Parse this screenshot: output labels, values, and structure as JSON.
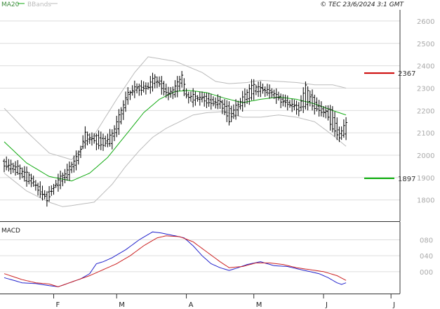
{
  "header": {
    "legend_ma": "MA20",
    "legend_bbands": "BBands",
    "copyright": "© TEC 23/6/2024 3:1 GMT"
  },
  "colors": {
    "price_bars": "#000000",
    "ma20": "#11aa11",
    "bbands": "#bbbbbb",
    "macd_line": "#2222cc",
    "signal_line": "#cc2222",
    "resistance_line": "#cc0000",
    "support_line": "#00aa00",
    "grid": "#dddddd",
    "axis_label": "#aaaaaa"
  },
  "chart_data": [
    {
      "type": "ohlc",
      "y_ticks": [
        "2600",
        "2500",
        "2400",
        "2300",
        "2200",
        "2100",
        "2000",
        "1900",
        "1800"
      ],
      "y_tick_values": [
        2600,
        2500,
        2400,
        2300,
        2200,
        2100,
        2000,
        1900,
        1800
      ],
      "ylim": [
        1705,
        2650
      ],
      "x_labels": [
        "F",
        "M",
        "A",
        "M",
        "J",
        "J"
      ],
      "x_label_days": [
        22,
        50,
        81,
        111,
        142,
        172
      ],
      "xlim": [
        0,
        176
      ],
      "levels": [
        {
          "name": "resistance",
          "value": 2367,
          "label": "2367"
        },
        {
          "name": "support",
          "value": 1897,
          "label": "1897"
        }
      ],
      "anchor_ohlc": [
        [
          0,
          1970,
          1955
        ],
        [
          6,
          1925,
          1950
        ],
        [
          12,
          1880,
          1900
        ],
        [
          16,
          1855,
          1830
        ],
        [
          19,
          1820,
          1800
        ],
        [
          23,
          1860,
          1875
        ],
        [
          28,
          1900,
          1935
        ],
        [
          33,
          1980,
          2000
        ],
        [
          36,
          2060,
          2100
        ],
        [
          40,
          2080,
          2060
        ],
        [
          44,
          2080,
          2040
        ],
        [
          48,
          2050,
          2100
        ],
        [
          52,
          2150,
          2200
        ],
        [
          55,
          2250,
          2280
        ],
        [
          58,
          2290,
          2300
        ],
        [
          61,
          2310,
          2290
        ],
        [
          64,
          2300,
          2310
        ],
        [
          67,
          2320,
          2350
        ],
        [
          70,
          2330,
          2300
        ],
        [
          73,
          2280,
          2270
        ],
        [
          76,
          2270,
          2310
        ],
        [
          79,
          2320,
          2360
        ],
        [
          81,
          2280,
          2260
        ],
        [
          84,
          2240,
          2270
        ],
        [
          88,
          2260,
          2250
        ],
        [
          92,
          2250,
          2230
        ],
        [
          96,
          2230,
          2240
        ],
        [
          100,
          2220,
          2150
        ],
        [
          103,
          2180,
          2220
        ],
        [
          107,
          2240,
          2270
        ],
        [
          111,
          2270,
          2320
        ],
        [
          115,
          2300,
          2290
        ],
        [
          119,
          2270,
          2290
        ],
        [
          123,
          2260,
          2240
        ],
        [
          127,
          2230,
          2230
        ],
        [
          131,
          2220,
          2200
        ],
        [
          134,
          2210,
          2320
        ],
        [
          137,
          2270,
          2220
        ],
        [
          140,
          2220,
          2200
        ],
        [
          143,
          2200,
          2190
        ],
        [
          146,
          2200,
          2120
        ],
        [
          149,
          2110,
          2080
        ],
        [
          152,
          2090,
          2150
        ]
      ],
      "ma20_anchors": [
        [
          0,
          2060
        ],
        [
          10,
          1965
        ],
        [
          20,
          1905
        ],
        [
          30,
          1885
        ],
        [
          38,
          1920
        ],
        [
          46,
          1990
        ],
        [
          54,
          2090
        ],
        [
          62,
          2190
        ],
        [
          69,
          2250
        ],
        [
          76,
          2285
        ],
        [
          82,
          2290
        ],
        [
          90,
          2280
        ],
        [
          98,
          2255
        ],
        [
          106,
          2235
        ],
        [
          114,
          2250
        ],
        [
          122,
          2260
        ],
        [
          130,
          2250
        ],
        [
          138,
          2230
        ],
        [
          146,
          2200
        ],
        [
          152,
          2180
        ]
      ],
      "bband_upper_anchors": [
        [
          0,
          2210
        ],
        [
          10,
          2105
        ],
        [
          20,
          2010
        ],
        [
          30,
          1980
        ],
        [
          40,
          2090
        ],
        [
          50,
          2250
        ],
        [
          58,
          2370
        ],
        [
          64,
          2440
        ],
        [
          70,
          2430
        ],
        [
          76,
          2420
        ],
        [
          82,
          2395
        ],
        [
          88,
          2370
        ],
        [
          94,
          2330
        ],
        [
          100,
          2320
        ],
        [
          108,
          2325
        ],
        [
          114,
          2335
        ],
        [
          122,
          2330
        ],
        [
          130,
          2325
        ],
        [
          138,
          2315
        ],
        [
          146,
          2315
        ],
        [
          152,
          2300
        ]
      ],
      "bband_lower_anchors": [
        [
          0,
          1920
        ],
        [
          10,
          1840
        ],
        [
          20,
          1790
        ],
        [
          26,
          1770
        ],
        [
          30,
          1775
        ],
        [
          40,
          1790
        ],
        [
          48,
          1870
        ],
        [
          54,
          1950
        ],
        [
          60,
          2020
        ],
        [
          66,
          2080
        ],
        [
          72,
          2120
        ],
        [
          78,
          2150
        ],
        [
          84,
          2180
        ],
        [
          90,
          2190
        ],
        [
          98,
          2195
        ],
        [
          106,
          2170
        ],
        [
          114,
          2170
        ],
        [
          122,
          2180
        ],
        [
          130,
          2170
        ],
        [
          138,
          2150
        ],
        [
          146,
          2090
        ],
        [
          152,
          2040
        ]
      ]
    },
    {
      "type": "line",
      "title": "MACD",
      "y_ticks": [
        "080",
        "040",
        "000"
      ],
      "y_tick_values": [
        80,
        40,
        0
      ],
      "ylim": [
        -55,
        125
      ],
      "series": [
        {
          "key": "macd",
          "anchors": [
            [
              0,
              -15
            ],
            [
              8,
              -28
            ],
            [
              14,
              -30
            ],
            [
              20,
              -35
            ],
            [
              24,
              -38
            ],
            [
              28,
              -30
            ],
            [
              34,
              -18
            ],
            [
              38,
              -5
            ],
            [
              41,
              20
            ],
            [
              44,
              25
            ],
            [
              48,
              35
            ],
            [
              54,
              55
            ],
            [
              60,
              80
            ],
            [
              66,
              100
            ],
            [
              70,
              97
            ],
            [
              76,
              90
            ],
            [
              80,
              85
            ],
            [
              84,
              65
            ],
            [
              88,
              40
            ],
            [
              92,
              20
            ],
            [
              96,
              10
            ],
            [
              100,
              3
            ],
            [
              104,
              10
            ],
            [
              108,
              18
            ],
            [
              114,
              25
            ],
            [
              120,
              15
            ],
            [
              126,
              13
            ],
            [
              132,
              5
            ],
            [
              136,
              0
            ],
            [
              140,
              -5
            ],
            [
              144,
              -15
            ],
            [
              148,
              -28
            ],
            [
              150,
              -32
            ],
            [
              152,
              -28
            ]
          ]
        },
        {
          "key": "signal",
          "anchors": [
            [
              0,
              -5
            ],
            [
              8,
              -20
            ],
            [
              14,
              -28
            ],
            [
              20,
              -31
            ],
            [
              24,
              -38
            ],
            [
              28,
              -30
            ],
            [
              34,
              -18
            ],
            [
              38,
              -10
            ],
            [
              44,
              5
            ],
            [
              50,
              20
            ],
            [
              56,
              40
            ],
            [
              62,
              65
            ],
            [
              68,
              85
            ],
            [
              72,
              90
            ],
            [
              78,
              88
            ],
            [
              84,
              75
            ],
            [
              90,
              50
            ],
            [
              96,
              25
            ],
            [
              100,
              10
            ],
            [
              106,
              13
            ],
            [
              112,
              22
            ],
            [
              118,
              22
            ],
            [
              124,
              18
            ],
            [
              130,
              10
            ],
            [
              136,
              5
            ],
            [
              142,
              0
            ],
            [
              148,
              -10
            ],
            [
              152,
              -22
            ]
          ]
        }
      ]
    }
  ]
}
